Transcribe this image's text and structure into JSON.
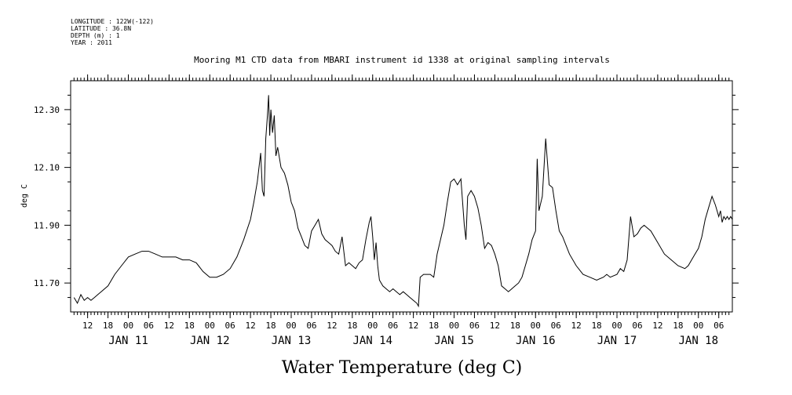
{
  "header": {
    "longitude": "LONGITUDE : 122W(-122)",
    "latitude": "LATITUDE : 36.8N",
    "depth": "DEPTH (m) : 1",
    "year": "YEAR : 2011"
  },
  "chart_data": {
    "type": "line",
    "title": "Mooring M1 CTD data from MBARI instrument id 1338 at original sampling intervals",
    "xlabel": "Water Temperature (deg C)",
    "ylabel": "deg C",
    "xlim": [
      "2011-01-10T07:00",
      "2011-01-18T10:00"
    ],
    "ylim": [
      11.6,
      12.4
    ],
    "yticks": [
      11.7,
      11.9,
      12.1,
      12.3
    ],
    "ytick_labels": [
      "11.70",
      "11.90",
      "12.10",
      "12.30"
    ],
    "hour_ticks": [
      {
        "t": "2011-01-10T12:00",
        "label": "12"
      },
      {
        "t": "2011-01-10T18:00",
        "label": "18"
      },
      {
        "t": "2011-01-11T00:00",
        "label": "00"
      },
      {
        "t": "2011-01-11T06:00",
        "label": "06"
      },
      {
        "t": "2011-01-11T12:00",
        "label": "12"
      },
      {
        "t": "2011-01-11T18:00",
        "label": "18"
      },
      {
        "t": "2011-01-12T00:00",
        "label": "00"
      },
      {
        "t": "2011-01-12T06:00",
        "label": "06"
      },
      {
        "t": "2011-01-12T12:00",
        "label": "12"
      },
      {
        "t": "2011-01-12T18:00",
        "label": "18"
      },
      {
        "t": "2011-01-13T00:00",
        "label": "00"
      },
      {
        "t": "2011-01-13T06:00",
        "label": "06"
      },
      {
        "t": "2011-01-13T12:00",
        "label": "12"
      },
      {
        "t": "2011-01-13T18:00",
        "label": "18"
      },
      {
        "t": "2011-01-14T00:00",
        "label": "00"
      },
      {
        "t": "2011-01-14T06:00",
        "label": "06"
      },
      {
        "t": "2011-01-14T12:00",
        "label": "12"
      },
      {
        "t": "2011-01-14T18:00",
        "label": "18"
      },
      {
        "t": "2011-01-15T00:00",
        "label": "00"
      },
      {
        "t": "2011-01-15T06:00",
        "label": "06"
      },
      {
        "t": "2011-01-15T12:00",
        "label": "12"
      },
      {
        "t": "2011-01-15T18:00",
        "label": "18"
      },
      {
        "t": "2011-01-16T00:00",
        "label": "00"
      },
      {
        "t": "2011-01-16T06:00",
        "label": "06"
      },
      {
        "t": "2011-01-16T12:00",
        "label": "12"
      },
      {
        "t": "2011-01-16T18:00",
        "label": "18"
      },
      {
        "t": "2011-01-17T00:00",
        "label": "00"
      },
      {
        "t": "2011-01-17T06:00",
        "label": "06"
      },
      {
        "t": "2011-01-17T12:00",
        "label": "12"
      },
      {
        "t": "2011-01-17T18:00",
        "label": "18"
      },
      {
        "t": "2011-01-18T00:00",
        "label": "00"
      },
      {
        "t": "2011-01-18T06:00",
        "label": "06"
      }
    ],
    "day_labels": [
      {
        "t": "2011-01-11T00:00",
        "label": "JAN 11"
      },
      {
        "t": "2011-01-12T00:00",
        "label": "JAN 12"
      },
      {
        "t": "2011-01-13T00:00",
        "label": "JAN 13"
      },
      {
        "t": "2011-01-14T00:00",
        "label": "JAN 14"
      },
      {
        "t": "2011-01-15T00:00",
        "label": "JAN 15"
      },
      {
        "t": "2011-01-16T00:00",
        "label": "JAN 16"
      },
      {
        "t": "2011-01-17T00:00",
        "label": "JAN 17"
      },
      {
        "t": "2011-01-18T00:00",
        "label": "JAN 18"
      }
    ],
    "series": [
      {
        "points": [
          [
            "2011-01-10T08:00",
            11.65
          ],
          [
            "2011-01-10T09:00",
            11.63
          ],
          [
            "2011-01-10T10:00",
            11.66
          ],
          [
            "2011-01-10T11:00",
            11.64
          ],
          [
            "2011-01-10T12:00",
            11.65
          ],
          [
            "2011-01-10T13:00",
            11.64
          ],
          [
            "2011-01-10T14:00",
            11.65
          ],
          [
            "2011-01-10T15:00",
            11.66
          ],
          [
            "2011-01-10T16:00",
            11.67
          ],
          [
            "2011-01-10T18:00",
            11.69
          ],
          [
            "2011-01-10T20:00",
            11.73
          ],
          [
            "2011-01-10T22:00",
            11.76
          ],
          [
            "2011-01-11T00:00",
            11.79
          ],
          [
            "2011-01-11T02:00",
            11.8
          ],
          [
            "2011-01-11T04:00",
            11.81
          ],
          [
            "2011-01-11T06:00",
            11.81
          ],
          [
            "2011-01-11T08:00",
            11.8
          ],
          [
            "2011-01-11T10:00",
            11.79
          ],
          [
            "2011-01-11T12:00",
            11.79
          ],
          [
            "2011-01-11T14:00",
            11.79
          ],
          [
            "2011-01-11T16:00",
            11.78
          ],
          [
            "2011-01-11T18:00",
            11.78
          ],
          [
            "2011-01-11T20:00",
            11.77
          ],
          [
            "2011-01-11T22:00",
            11.74
          ],
          [
            "2011-01-12T00:00",
            11.72
          ],
          [
            "2011-01-12T02:00",
            11.72
          ],
          [
            "2011-01-12T04:00",
            11.73
          ],
          [
            "2011-01-12T06:00",
            11.75
          ],
          [
            "2011-01-12T08:00",
            11.79
          ],
          [
            "2011-01-12T10:00",
            11.85
          ],
          [
            "2011-01-12T12:00",
            11.92
          ],
          [
            "2011-01-12T13:00",
            11.98
          ],
          [
            "2011-01-12T14:00",
            12.05
          ],
          [
            "2011-01-12T15:00",
            12.15
          ],
          [
            "2011-01-12T15:30",
            12.02
          ],
          [
            "2011-01-12T16:00",
            12.0
          ],
          [
            "2011-01-12T16:30",
            12.2
          ],
          [
            "2011-01-12T17:00",
            12.28
          ],
          [
            "2011-01-12T17:20",
            12.35
          ],
          [
            "2011-01-12T17:40",
            12.21
          ],
          [
            "2011-01-12T18:00",
            12.3
          ],
          [
            "2011-01-12T18:30",
            12.22
          ],
          [
            "2011-01-12T19:00",
            12.28
          ],
          [
            "2011-01-12T19:30",
            12.14
          ],
          [
            "2011-01-12T20:00",
            12.17
          ],
          [
            "2011-01-12T21:00",
            12.1
          ],
          [
            "2011-01-12T22:00",
            12.08
          ],
          [
            "2011-01-12T23:00",
            12.04
          ],
          [
            "2011-01-13T00:00",
            11.98
          ],
          [
            "2011-01-13T01:00",
            11.95
          ],
          [
            "2011-01-13T02:00",
            11.89
          ],
          [
            "2011-01-13T03:00",
            11.86
          ],
          [
            "2011-01-13T04:00",
            11.83
          ],
          [
            "2011-01-13T05:00",
            11.82
          ],
          [
            "2011-01-13T06:00",
            11.88
          ],
          [
            "2011-01-13T07:00",
            11.9
          ],
          [
            "2011-01-13T08:00",
            11.92
          ],
          [
            "2011-01-13T09:00",
            11.87
          ],
          [
            "2011-01-13T10:00",
            11.85
          ],
          [
            "2011-01-13T11:00",
            11.84
          ],
          [
            "2011-01-13T12:00",
            11.83
          ],
          [
            "2011-01-13T13:00",
            11.81
          ],
          [
            "2011-01-13T14:00",
            11.8
          ],
          [
            "2011-01-13T15:00",
            11.86
          ],
          [
            "2011-01-13T16:00",
            11.76
          ],
          [
            "2011-01-13T17:00",
            11.77
          ],
          [
            "2011-01-13T18:00",
            11.76
          ],
          [
            "2011-01-13T19:00",
            11.75
          ],
          [
            "2011-01-13T20:00",
            11.77
          ],
          [
            "2011-01-13T21:00",
            11.78
          ],
          [
            "2011-01-13T22:00",
            11.85
          ],
          [
            "2011-01-13T23:00",
            11.91
          ],
          [
            "2011-01-13T23:30",
            11.93
          ],
          [
            "2011-01-14T00:00",
            11.86
          ],
          [
            "2011-01-14T00:30",
            11.78
          ],
          [
            "2011-01-14T01:00",
            11.84
          ],
          [
            "2011-01-14T01:30",
            11.76
          ],
          [
            "2011-01-14T02:00",
            11.71
          ],
          [
            "2011-01-14T03:00",
            11.69
          ],
          [
            "2011-01-14T04:00",
            11.68
          ],
          [
            "2011-01-14T05:00",
            11.67
          ],
          [
            "2011-01-14T06:00",
            11.68
          ],
          [
            "2011-01-14T07:00",
            11.67
          ],
          [
            "2011-01-14T08:00",
            11.66
          ],
          [
            "2011-01-14T09:00",
            11.67
          ],
          [
            "2011-01-14T10:00",
            11.66
          ],
          [
            "2011-01-14T11:00",
            11.65
          ],
          [
            "2011-01-14T12:00",
            11.64
          ],
          [
            "2011-01-14T13:00",
            11.63
          ],
          [
            "2011-01-14T13:30",
            11.62
          ],
          [
            "2011-01-14T14:00",
            11.72
          ],
          [
            "2011-01-14T15:00",
            11.73
          ],
          [
            "2011-01-14T16:00",
            11.73
          ],
          [
            "2011-01-14T17:00",
            11.73
          ],
          [
            "2011-01-14T18:00",
            11.72
          ],
          [
            "2011-01-14T19:00",
            11.8
          ],
          [
            "2011-01-14T20:00",
            11.85
          ],
          [
            "2011-01-14T21:00",
            11.9
          ],
          [
            "2011-01-14T22:00",
            11.98
          ],
          [
            "2011-01-14T23:00",
            12.05
          ],
          [
            "2011-01-15T00:00",
            12.06
          ],
          [
            "2011-01-15T01:00",
            12.04
          ],
          [
            "2011-01-15T02:00",
            12.06
          ],
          [
            "2011-01-15T03:00",
            11.9
          ],
          [
            "2011-01-15T03:30",
            11.85
          ],
          [
            "2011-01-15T04:00",
            12.0
          ],
          [
            "2011-01-15T05:00",
            12.02
          ],
          [
            "2011-01-15T06:00",
            12.0
          ],
          [
            "2011-01-15T07:00",
            11.96
          ],
          [
            "2011-01-15T08:00",
            11.9
          ],
          [
            "2011-01-15T09:00",
            11.82
          ],
          [
            "2011-01-15T10:00",
            11.84
          ],
          [
            "2011-01-15T11:00",
            11.83
          ],
          [
            "2011-01-15T12:00",
            11.8
          ],
          [
            "2011-01-15T13:00",
            11.76
          ],
          [
            "2011-01-15T14:00",
            11.69
          ],
          [
            "2011-01-15T15:00",
            11.68
          ],
          [
            "2011-01-15T16:00",
            11.67
          ],
          [
            "2011-01-15T17:00",
            11.68
          ],
          [
            "2011-01-15T18:00",
            11.69
          ],
          [
            "2011-01-15T19:00",
            11.7
          ],
          [
            "2011-01-15T20:00",
            11.72
          ],
          [
            "2011-01-15T21:00",
            11.76
          ],
          [
            "2011-01-15T22:00",
            11.8
          ],
          [
            "2011-01-15T23:00",
            11.85
          ],
          [
            "2011-01-16T00:00",
            11.88
          ],
          [
            "2011-01-16T00:30",
            12.13
          ],
          [
            "2011-01-16T01:00",
            11.95
          ],
          [
            "2011-01-16T02:00",
            12.0
          ],
          [
            "2011-01-16T03:00",
            12.2
          ],
          [
            "2011-01-16T03:30",
            12.12
          ],
          [
            "2011-01-16T04:00",
            12.04
          ],
          [
            "2011-01-16T05:00",
            12.03
          ],
          [
            "2011-01-16T06:00",
            11.95
          ],
          [
            "2011-01-16T07:00",
            11.88
          ],
          [
            "2011-01-16T08:00",
            11.86
          ],
          [
            "2011-01-16T10:00",
            11.8
          ],
          [
            "2011-01-16T12:00",
            11.76
          ],
          [
            "2011-01-16T14:00",
            11.73
          ],
          [
            "2011-01-16T16:00",
            11.72
          ],
          [
            "2011-01-16T18:00",
            11.71
          ],
          [
            "2011-01-16T20:00",
            11.72
          ],
          [
            "2011-01-16T21:00",
            11.73
          ],
          [
            "2011-01-16T22:00",
            11.72
          ],
          [
            "2011-01-17T00:00",
            11.73
          ],
          [
            "2011-01-17T01:00",
            11.75
          ],
          [
            "2011-01-17T02:00",
            11.74
          ],
          [
            "2011-01-17T03:00",
            11.78
          ],
          [
            "2011-01-17T04:00",
            11.93
          ],
          [
            "2011-01-17T05:00",
            11.86
          ],
          [
            "2011-01-17T06:00",
            11.87
          ],
          [
            "2011-01-17T07:00",
            11.89
          ],
          [
            "2011-01-17T08:00",
            11.9
          ],
          [
            "2011-01-17T10:00",
            11.88
          ],
          [
            "2011-01-17T12:00",
            11.84
          ],
          [
            "2011-01-17T14:00",
            11.8
          ],
          [
            "2011-01-17T16:00",
            11.78
          ],
          [
            "2011-01-17T18:00",
            11.76
          ],
          [
            "2011-01-17T20:00",
            11.75
          ],
          [
            "2011-01-17T21:00",
            11.76
          ],
          [
            "2011-01-17T22:00",
            11.78
          ],
          [
            "2011-01-17T23:00",
            11.8
          ],
          [
            "2011-01-18T00:00",
            11.82
          ],
          [
            "2011-01-18T01:00",
            11.86
          ],
          [
            "2011-01-18T02:00",
            11.92
          ],
          [
            "2011-01-18T03:00",
            11.96
          ],
          [
            "2011-01-18T04:00",
            12.0
          ],
          [
            "2011-01-18T05:00",
            11.97
          ],
          [
            "2011-01-18T06:00",
            11.93
          ],
          [
            "2011-01-18T06:30",
            11.95
          ],
          [
            "2011-01-18T07:00",
            11.91
          ],
          [
            "2011-01-18T07:30",
            11.93
          ],
          [
            "2011-01-18T08:00",
            11.92
          ],
          [
            "2011-01-18T08:30",
            11.93
          ],
          [
            "2011-01-18T09:00",
            11.92
          ],
          [
            "2011-01-18T09:30",
            11.93
          ],
          [
            "2011-01-18T10:00",
            11.92
          ]
        ]
      }
    ]
  }
}
